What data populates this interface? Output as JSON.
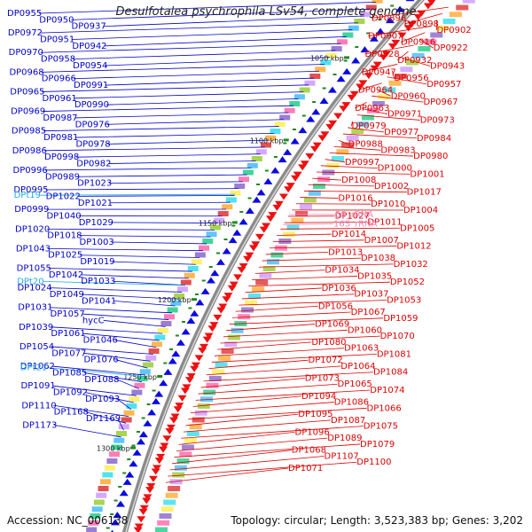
{
  "title": "Desulfotalea psychrophila LSv54, complete genome",
  "accession": "Accession: NC_006138",
  "summary": "Topology: circular; Length: 3,523,383 bp; Genes: 3,202",
  "colors": {
    "left_labels": "#0000cc",
    "right_labels": "#dd0000",
    "trna_labels": "#22aadd",
    "rrna_labels": "#ee88bb",
    "backbone": "#888888",
    "ticks": "#228822"
  },
  "scale_ticks": [
    "1050 kbp",
    "1100 kbp",
    "1150 kbp",
    "1200 kbp",
    "1250 kbp",
    "1300 kbp"
  ],
  "left_genes": [
    "DP0955",
    "DP0950",
    "DP0937",
    "DP0972",
    "DP0951",
    "DP0942",
    "DP0970",
    "DP0958",
    "DP0954",
    "DP0968",
    "DP0966",
    "DP0991",
    "DP0965",
    "DP0961",
    "DP0990",
    "DP0969",
    "DP0987",
    "DP0976",
    "DP0985",
    "DP0981",
    "DP0978",
    "DP0986",
    "DP0998",
    "DP0982",
    "DP0996",
    "DP0989",
    "DP1023",
    "DP0995",
    "DP1022",
    "DP1021",
    "DP0999",
    "DP1040",
    "DP1029",
    "DP1020",
    "DP1018",
    "DP1003",
    "DP1043",
    "DP1025",
    "DP1019",
    "DP1055",
    "DP1042",
    "DP1033",
    "DP1024",
    "DP1049",
    "DP1041",
    "DP1031",
    "DP1057",
    "hycC",
    "DP1039",
    "DP1061",
    "DP1046",
    "DP1054",
    "DP1077",
    "DP1076",
    "DP1062",
    "DP1085",
    "DP1088",
    "DP1091",
    "DP1092",
    "DP1093",
    "DP1110",
    "DP1168",
    "DP1169",
    "DP1173"
  ],
  "trna_genes": [
    "DPt19",
    "DPt20",
    "DPt21"
  ],
  "right_genes": [
    "DP0896",
    "DP0898",
    "DP0902",
    "DP0907",
    "DP0916",
    "DP0922",
    "DP0928",
    "DP0932",
    "DP0943",
    "DP0947",
    "DP0956",
    "DP0957",
    "DP0964",
    "DP0960",
    "DP0967",
    "DP0963",
    "DP0971",
    "DP0973",
    "DP0979",
    "DP0977",
    "DP0984",
    "DP0988",
    "DP0983",
    "DP0980",
    "DP0997",
    "DP1000",
    "DP1001",
    "DP1008",
    "DP1002",
    "DP1017",
    "DP1016",
    "DP1010",
    "DP1004",
    "DP1027",
    "DP1011",
    "DP1005",
    "DP1014",
    "DP1007",
    "DP1012",
    "DP1013",
    "DP1038",
    "DP1032",
    "DP1034",
    "DP1035",
    "DP1052",
    "DP1036",
    "DP1037",
    "DP1053",
    "DP1056",
    "DP1067",
    "DP1059",
    "DP1069",
    "DP1060",
    "DP1070",
    "DP1080",
    "DP1063",
    "DP1081",
    "DP1072",
    "DP1064",
    "DP1084",
    "DP1073",
    "DP1065",
    "DP1074",
    "DP1094",
    "DP1086",
    "DP1066",
    "DP1095",
    "DP1087",
    "DP1075",
    "DP1096",
    "DP1089",
    "DP1079",
    "DP1068",
    "DP1107",
    "DP1100",
    "DP1071"
  ],
  "rrna_genes": [
    "5S_rRNA",
    "16S_rRNA"
  ]
}
